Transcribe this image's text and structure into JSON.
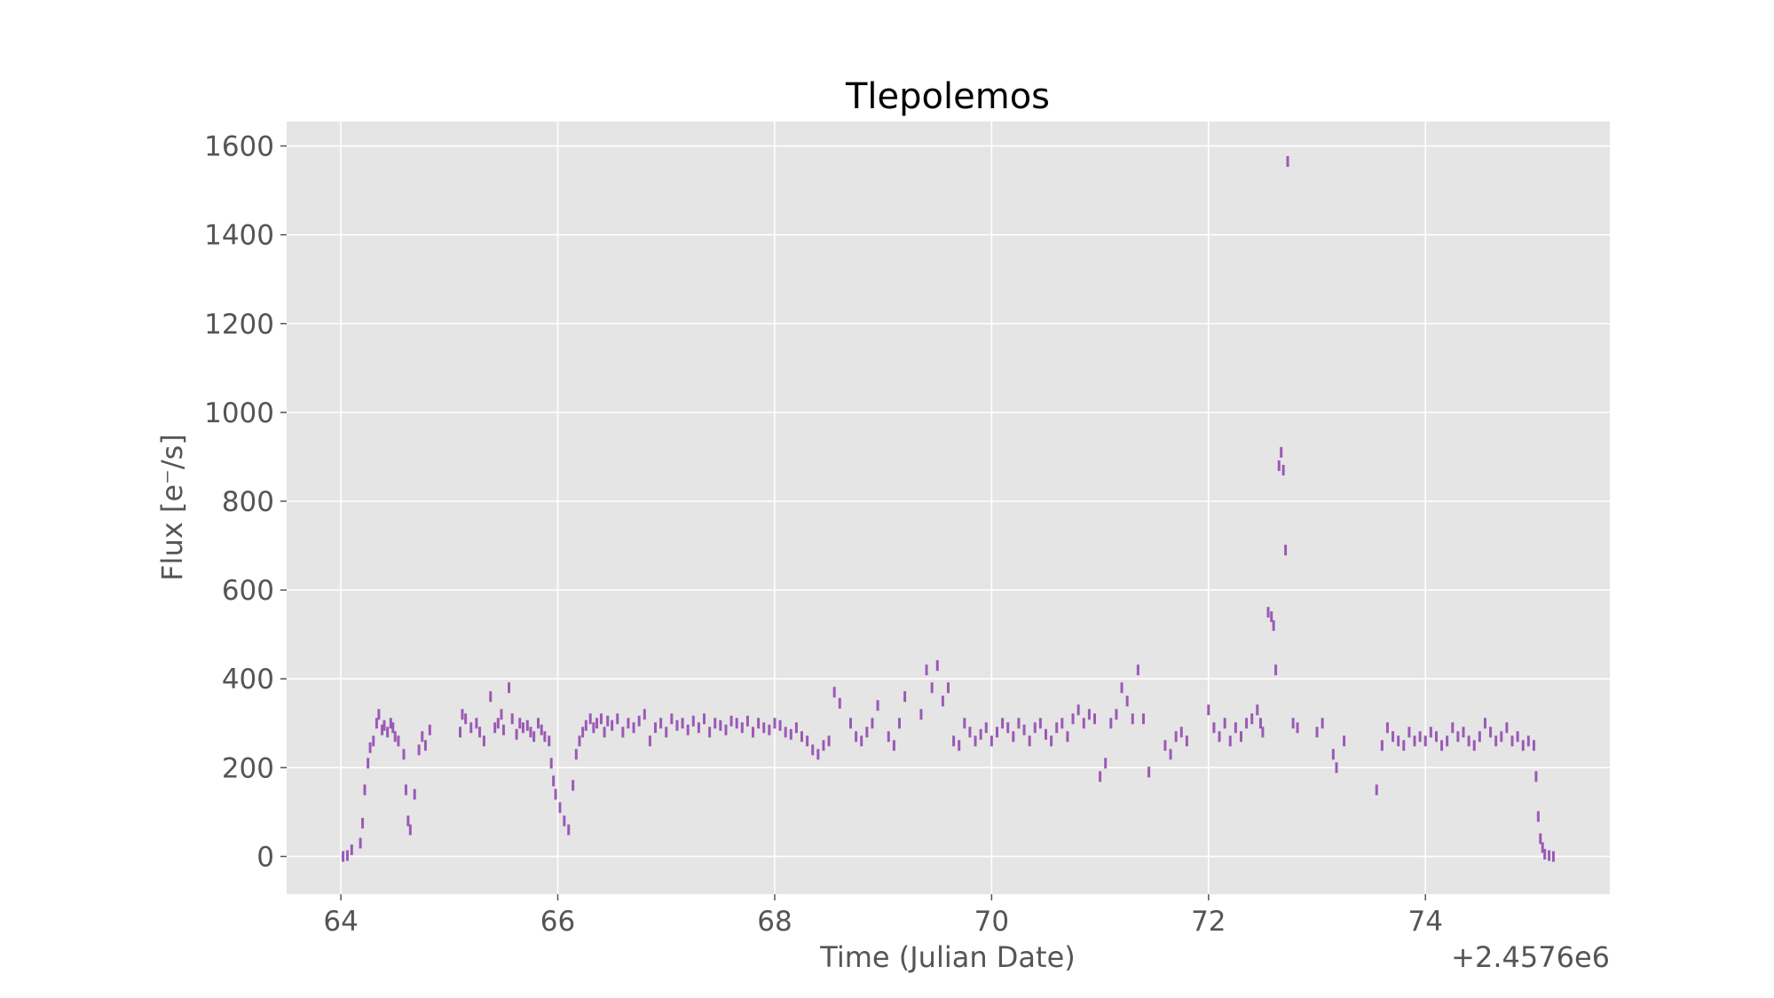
{
  "chart_data": {
    "type": "scatter",
    "title": "Tlepolemos",
    "xlabel": "Time (Julian Date)",
    "ylabel": "Flux [e⁻/s]",
    "x_offset_label": "+2.4576e6",
    "xlim": [
      63.5,
      75.7
    ],
    "ylim": [
      -85,
      1655
    ],
    "x_ticks": [
      64,
      66,
      68,
      70,
      72,
      74
    ],
    "x_tick_labels": [
      "64",
      "66",
      "68",
      "70",
      "72",
      "74"
    ],
    "y_ticks": [
      0,
      200,
      400,
      600,
      800,
      1000,
      1200,
      1400,
      1600
    ],
    "y_tick_labels": [
      "0",
      "200",
      "400",
      "600",
      "800",
      "1000",
      "1200",
      "1400",
      "1600"
    ],
    "grid": true,
    "legend": "none",
    "colors": {
      "axes_background": "#e5e5e5",
      "grid": "#ffffff",
      "marker": "#9b59b6",
      "tick_text": "#555555",
      "title_text": "#000000"
    },
    "series": [
      {
        "marker": "short vertical dash",
        "points": [
          [
            64.02,
            0
          ],
          [
            64.06,
            2
          ],
          [
            64.1,
            15
          ],
          [
            64.18,
            30
          ],
          [
            64.2,
            75
          ],
          [
            64.22,
            150
          ],
          [
            64.25,
            210
          ],
          [
            64.27,
            245
          ],
          [
            64.3,
            260
          ],
          [
            64.33,
            300
          ],
          [
            64.35,
            320
          ],
          [
            64.38,
            285
          ],
          [
            64.4,
            295
          ],
          [
            64.43,
            280
          ],
          [
            64.46,
            300
          ],
          [
            64.48,
            290
          ],
          [
            64.5,
            270
          ],
          [
            64.53,
            260
          ],
          [
            64.58,
            230
          ],
          [
            64.6,
            150
          ],
          [
            64.62,
            80
          ],
          [
            64.64,
            60
          ],
          [
            64.68,
            140
          ],
          [
            64.72,
            240
          ],
          [
            64.75,
            270
          ],
          [
            64.78,
            250
          ],
          [
            64.82,
            285
          ],
          [
            65.1,
            280
          ],
          [
            65.12,
            320
          ],
          [
            65.15,
            310
          ],
          [
            65.2,
            290
          ],
          [
            65.25,
            300
          ],
          [
            65.28,
            280
          ],
          [
            65.32,
            260
          ],
          [
            65.38,
            360
          ],
          [
            65.42,
            290
          ],
          [
            65.45,
            300
          ],
          [
            65.48,
            320
          ],
          [
            65.5,
            285
          ],
          [
            65.55,
            380
          ],
          [
            65.58,
            310
          ],
          [
            65.62,
            275
          ],
          [
            65.65,
            300
          ],
          [
            65.68,
            290
          ],
          [
            65.72,
            295
          ],
          [
            65.75,
            280
          ],
          [
            65.78,
            270
          ],
          [
            65.82,
            300
          ],
          [
            65.85,
            285
          ],
          [
            65.88,
            270
          ],
          [
            65.92,
            260
          ],
          [
            65.94,
            210
          ],
          [
            65.96,
            170
          ],
          [
            65.98,
            140
          ],
          [
            66.02,
            110
          ],
          [
            66.06,
            80
          ],
          [
            66.1,
            60
          ],
          [
            66.14,
            160
          ],
          [
            66.17,
            230
          ],
          [
            66.2,
            260
          ],
          [
            66.23,
            280
          ],
          [
            66.26,
            295
          ],
          [
            66.3,
            310
          ],
          [
            66.33,
            290
          ],
          [
            66.36,
            300
          ],
          [
            66.4,
            310
          ],
          [
            66.43,
            280
          ],
          [
            66.46,
            305
          ],
          [
            66.5,
            295
          ],
          [
            66.55,
            310
          ],
          [
            66.6,
            280
          ],
          [
            66.65,
            300
          ],
          [
            66.7,
            290
          ],
          [
            66.75,
            305
          ],
          [
            66.8,
            320
          ],
          [
            66.85,
            260
          ],
          [
            66.9,
            290
          ],
          [
            66.95,
            300
          ],
          [
            67.0,
            280
          ],
          [
            67.05,
            310
          ],
          [
            67.1,
            295
          ],
          [
            67.15,
            300
          ],
          [
            67.2,
            285
          ],
          [
            67.25,
            305
          ],
          [
            67.3,
            290
          ],
          [
            67.35,
            310
          ],
          [
            67.4,
            280
          ],
          [
            67.45,
            300
          ],
          [
            67.5,
            295
          ],
          [
            67.55,
            285
          ],
          [
            67.6,
            305
          ],
          [
            67.65,
            300
          ],
          [
            67.7,
            290
          ],
          [
            67.75,
            305
          ],
          [
            67.8,
            280
          ],
          [
            67.85,
            300
          ],
          [
            67.9,
            290
          ],
          [
            67.95,
            285
          ],
          [
            68.0,
            300
          ],
          [
            68.05,
            295
          ],
          [
            68.1,
            280
          ],
          [
            68.15,
            275
          ],
          [
            68.2,
            290
          ],
          [
            68.25,
            270
          ],
          [
            68.3,
            260
          ],
          [
            68.35,
            240
          ],
          [
            68.4,
            230
          ],
          [
            68.45,
            250
          ],
          [
            68.5,
            260
          ],
          [
            68.55,
            370
          ],
          [
            68.6,
            345
          ],
          [
            68.7,
            300
          ],
          [
            68.75,
            270
          ],
          [
            68.8,
            260
          ],
          [
            68.85,
            280
          ],
          [
            68.9,
            300
          ],
          [
            68.95,
            340
          ],
          [
            69.05,
            270
          ],
          [
            69.1,
            250
          ],
          [
            69.15,
            300
          ],
          [
            69.2,
            360
          ],
          [
            69.35,
            320
          ],
          [
            69.4,
            420
          ],
          [
            69.45,
            380
          ],
          [
            69.5,
            430
          ],
          [
            69.55,
            350
          ],
          [
            69.6,
            380
          ],
          [
            69.65,
            260
          ],
          [
            69.7,
            250
          ],
          [
            69.75,
            300
          ],
          [
            69.8,
            280
          ],
          [
            69.85,
            260
          ],
          [
            69.9,
            275
          ],
          [
            69.95,
            290
          ],
          [
            70.0,
            260
          ],
          [
            70.05,
            280
          ],
          [
            70.1,
            300
          ],
          [
            70.15,
            290
          ],
          [
            70.2,
            270
          ],
          [
            70.25,
            300
          ],
          [
            70.3,
            285
          ],
          [
            70.35,
            260
          ],
          [
            70.4,
            290
          ],
          [
            70.45,
            300
          ],
          [
            70.5,
            275
          ],
          [
            70.55,
            260
          ],
          [
            70.6,
            290
          ],
          [
            70.65,
            300
          ],
          [
            70.7,
            270
          ],
          [
            70.75,
            310
          ],
          [
            70.8,
            330
          ],
          [
            70.85,
            300
          ],
          [
            70.9,
            320
          ],
          [
            70.95,
            310
          ],
          [
            71.0,
            180
          ],
          [
            71.05,
            210
          ],
          [
            71.1,
            300
          ],
          [
            71.15,
            320
          ],
          [
            71.2,
            380
          ],
          [
            71.25,
            350
          ],
          [
            71.3,
            310
          ],
          [
            71.35,
            420
          ],
          [
            71.4,
            310
          ],
          [
            71.45,
            190
          ],
          [
            71.6,
            250
          ],
          [
            71.65,
            230
          ],
          [
            71.7,
            270
          ],
          [
            71.75,
            280
          ],
          [
            71.8,
            260
          ],
          [
            72.0,
            330
          ],
          [
            72.05,
            290
          ],
          [
            72.1,
            270
          ],
          [
            72.15,
            300
          ],
          [
            72.2,
            260
          ],
          [
            72.25,
            290
          ],
          [
            72.3,
            270
          ],
          [
            72.35,
            300
          ],
          [
            72.4,
            310
          ],
          [
            72.45,
            330
          ],
          [
            72.48,
            300
          ],
          [
            72.5,
            280
          ],
          [
            72.55,
            550
          ],
          [
            72.58,
            540
          ],
          [
            72.6,
            520
          ],
          [
            72.62,
            420
          ],
          [
            72.65,
            880
          ],
          [
            72.67,
            910
          ],
          [
            72.69,
            870
          ],
          [
            72.71,
            690
          ],
          [
            72.73,
            1565
          ],
          [
            72.78,
            300
          ],
          [
            72.82,
            290
          ],
          [
            73.0,
            280
          ],
          [
            73.05,
            300
          ],
          [
            73.15,
            230
          ],
          [
            73.18,
            200
          ],
          [
            73.25,
            260
          ],
          [
            73.55,
            150
          ],
          [
            73.6,
            250
          ],
          [
            73.65,
            290
          ],
          [
            73.7,
            270
          ],
          [
            73.75,
            260
          ],
          [
            73.8,
            250
          ],
          [
            73.85,
            280
          ],
          [
            73.9,
            260
          ],
          [
            73.95,
            270
          ],
          [
            74.0,
            260
          ],
          [
            74.05,
            280
          ],
          [
            74.1,
            270
          ],
          [
            74.15,
            250
          ],
          [
            74.2,
            260
          ],
          [
            74.25,
            290
          ],
          [
            74.3,
            270
          ],
          [
            74.35,
            280
          ],
          [
            74.4,
            260
          ],
          [
            74.45,
            250
          ],
          [
            74.5,
            270
          ],
          [
            74.55,
            300
          ],
          [
            74.6,
            280
          ],
          [
            74.65,
            260
          ],
          [
            74.7,
            270
          ],
          [
            74.75,
            290
          ],
          [
            74.8,
            260
          ],
          [
            74.85,
            270
          ],
          [
            74.9,
            250
          ],
          [
            74.95,
            260
          ],
          [
            75.0,
            250
          ],
          [
            75.02,
            180
          ],
          [
            75.04,
            90
          ],
          [
            75.06,
            40
          ],
          [
            75.08,
            20
          ],
          [
            75.1,
            5
          ],
          [
            75.14,
            2
          ],
          [
            75.18,
            0
          ]
        ]
      }
    ]
  }
}
